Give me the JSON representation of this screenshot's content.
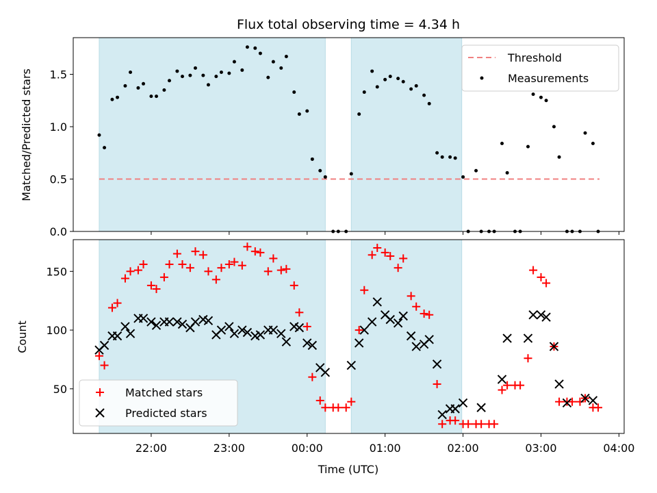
{
  "chart_data": {
    "title": "Flux total observing time = 4.34 h",
    "xlabel": "Time (UTC)",
    "x_ticks": [
      "22:00",
      "23:00",
      "00:00",
      "01:00",
      "02:00",
      "03:00",
      "04:00"
    ],
    "x_range": [
      "21:00",
      "04:04"
    ],
    "shaded_intervals": [
      {
        "start": "21:20",
        "end": "00:14",
        "color": "#d4ebf2"
      },
      {
        "start": "00:34",
        "end": "01:59",
        "color": "#d4ebf2"
      }
    ],
    "panels": [
      {
        "type": "scatter",
        "ylabel": "Matched/Predicted stars",
        "ylim": [
          0,
          1.85
        ],
        "y_ticks": [
          "0.0",
          "0.5",
          "1.0",
          "1.5"
        ],
        "y_tick_values": [
          0,
          0.5,
          1.0,
          1.5
        ],
        "legend_position": "top-right",
        "threshold": {
          "name": "Threshold",
          "value": 0.5,
          "start": "21:20",
          "end": "03:45",
          "color": "#f08080"
        },
        "series": [
          {
            "name": "Measurements",
            "color": "#000000",
            "marker": "dot",
            "x": [
              "21:20",
              "21:24",
              "21:30",
              "21:34",
              "21:40",
              "21:44",
              "21:50",
              "21:54",
              "22:00",
              "22:04",
              "22:10",
              "22:14",
              "22:20",
              "22:24",
              "22:30",
              "22:34",
              "22:40",
              "22:44",
              "22:50",
              "22:54",
              "23:00",
              "23:04",
              "23:10",
              "23:14",
              "23:20",
              "23:24",
              "23:30",
              "23:34",
              "23:40",
              "23:44",
              "23:50",
              "23:54",
              "24:00",
              "24:04",
              "24:10",
              "24:14",
              "24:20",
              "24:24",
              "24:30",
              "24:34",
              "24:40",
              "24:44",
              "24:50",
              "24:54",
              "25:00",
              "25:04",
              "25:10",
              "25:14",
              "25:20",
              "25:24",
              "25:30",
              "25:34",
              "25:40",
              "25:44",
              "25:50",
              "25:54",
              "26:00",
              "26:04",
              "26:10",
              "26:14",
              "26:20",
              "26:24",
              "26:30",
              "26:34",
              "26:40",
              "26:44",
              "26:50",
              "26:54",
              "27:00",
              "27:04",
              "27:10",
              "27:14",
              "27:20",
              "27:24",
              "27:30",
              "27:34",
              "27:40",
              "27:44"
            ],
            "y": [
              0.92,
              0.8,
              1.26,
              1.28,
              1.39,
              1.52,
              1.37,
              1.41,
              1.29,
              1.29,
              1.35,
              1.44,
              1.53,
              1.48,
              1.49,
              1.56,
              1.49,
              1.4,
              1.48,
              1.52,
              1.51,
              1.62,
              1.54,
              1.76,
              1.75,
              1.7,
              1.47,
              1.62,
              1.56,
              1.67,
              1.33,
              1.12,
              1.15,
              0.69,
              0.58,
              0.52,
              0.0,
              0.0,
              0.0,
              0.55,
              1.12,
              1.33,
              1.53,
              1.38,
              1.45,
              1.48,
              1.46,
              1.43,
              1.36,
              1.39,
              1.3,
              1.22,
              0.75,
              0.71,
              0.71,
              0.7,
              0.52,
              0.0,
              0.58,
              0.0,
              0.0,
              0.0,
              0.84,
              0.56,
              0.0,
              0.0,
              0.81,
              1.31,
              1.28,
              1.25,
              1.0,
              0.71,
              0.0,
              0.0,
              0.0,
              0.94,
              0.84,
              0.0
            ]
          }
        ]
      },
      {
        "type": "scatter",
        "ylabel": "Count",
        "ylim": [
          12,
          177
        ],
        "y_ticks": [
          "50",
          "100",
          "150"
        ],
        "y_tick_values": [
          50,
          100,
          150
        ],
        "legend_position": "bottom-left",
        "series": [
          {
            "name": "Matched stars",
            "color": "#ff0000",
            "marker": "plus",
            "x": [
              "21:20",
              "21:24",
              "21:30",
              "21:34",
              "21:40",
              "21:44",
              "21:50",
              "21:54",
              "22:00",
              "22:04",
              "22:10",
              "22:14",
              "22:20",
              "22:24",
              "22:30",
              "22:34",
              "22:40",
              "22:44",
              "22:50",
              "22:54",
              "23:00",
              "23:04",
              "23:10",
              "23:14",
              "23:20",
              "23:24",
              "23:30",
              "23:34",
              "23:40",
              "23:44",
              "23:50",
              "23:54",
              "24:00",
              "24:04",
              "24:10",
              "24:14",
              "24:20",
              "24:24",
              "24:30",
              "24:34",
              "24:40",
              "24:44",
              "24:50",
              "24:54",
              "25:00",
              "25:04",
              "25:10",
              "25:14",
              "25:20",
              "25:24",
              "25:30",
              "25:34",
              "25:40",
              "25:44",
              "25:50",
              "25:54",
              "26:00",
              "26:04",
              "26:10",
              "26:14",
              "26:20",
              "26:24",
              "26:30",
              "26:34",
              "26:40",
              "26:44",
              "26:50",
              "26:54",
              "27:00",
              "27:04",
              "27:10",
              "27:14",
              "27:20",
              "27:24",
              "27:30",
              "27:34",
              "27:40",
              "27:44"
            ],
            "y": [
              78,
              70,
              119,
              123,
              144,
              150,
              151,
              156,
              138,
              135,
              145,
              156,
              165,
              156,
              153,
              167,
              164,
              150,
              143,
              153,
              156,
              158,
              155,
              171,
              167,
              166,
              150,
              161,
              151,
              152,
              138,
              115,
              103,
              60,
              40,
              34,
              34,
              34,
              34,
              39,
              100,
              134,
              164,
              170,
              166,
              163,
              153,
              161,
              129,
              120,
              114,
              113,
              54,
              20,
              23,
              23,
              20,
              20,
              20,
              20,
              20,
              20,
              49,
              53,
              53,
              53,
              76,
              151,
              145,
              140,
              86,
              39,
              39,
              39,
              39,
              42,
              34,
              34
            ]
          },
          {
            "name": "Predicted stars",
            "color": "#000000",
            "marker": "x",
            "x": [
              "21:20",
              "21:24",
              "21:30",
              "21:34",
              "21:40",
              "21:44",
              "21:50",
              "21:54",
              "22:00",
              "22:04",
              "22:10",
              "22:14",
              "22:20",
              "22:24",
              "22:30",
              "22:34",
              "22:40",
              "22:44",
              "22:50",
              "22:54",
              "23:00",
              "23:04",
              "23:10",
              "23:14",
              "23:20",
              "23:24",
              "23:30",
              "23:34",
              "23:40",
              "23:44",
              "23:50",
              "23:54",
              "24:00",
              "24:04",
              "24:10",
              "24:14",
              "24:34",
              "24:40",
              "24:44",
              "24:50",
              "24:54",
              "25:00",
              "25:04",
              "25:10",
              "25:14",
              "25:20",
              "25:24",
              "25:30",
              "25:34",
              "25:40",
              "25:44",
              "25:50",
              "25:54",
              "26:00",
              "26:14",
              "26:30",
              "26:34",
              "26:50",
              "26:54",
              "27:00",
              "27:04",
              "27:10",
              "27:14",
              "27:20",
              "27:34",
              "27:40"
            ],
            "y": [
              83,
              87,
              95,
              95,
              103,
              97,
              110,
              110,
              107,
              104,
              107,
              107,
              107,
              105,
              102,
              107,
              109,
              108,
              96,
              100,
              103,
              97,
              100,
              98,
              95,
              96,
              100,
              100,
              97,
              90,
              103,
              102,
              89,
              87,
              68,
              64,
              70,
              89,
              100,
              107,
              124,
              113,
              109,
              106,
              112,
              95,
              86,
              88,
              92,
              71,
              28,
              33,
              33,
              38,
              34,
              58,
              93,
              93,
              113,
              113,
              111,
              86,
              54,
              38,
              42,
              40
            ]
          }
        ]
      }
    ]
  }
}
